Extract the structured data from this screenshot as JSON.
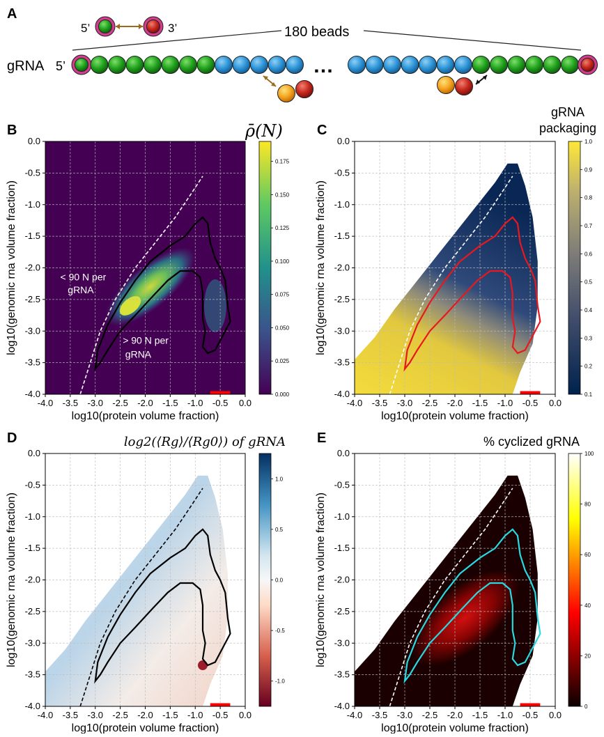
{
  "figure": {
    "panel_letters": [
      "A",
      "B",
      "C",
      "D",
      "E"
    ],
    "panel_a": {
      "bead_count_label": "180 beads",
      "strand_label": "gRNA",
      "five_prime": "5’",
      "three_prime": "3’",
      "ellipsis": "…",
      "colors": {
        "end_ring": "#d23c8c",
        "green": "#22a31f",
        "blue": "#2f96d8",
        "yellow": "#f5a623",
        "red": "#c8281e"
      }
    }
  },
  "chart_data": [
    {
      "panel": "B",
      "type": "heatmap",
      "title": "ρ̄(N)",
      "xlabel": "log10(protein volume fraction)",
      "ylabel": "log10(genomic rna volume fraction)",
      "xlim": [
        -4.0,
        0.0
      ],
      "ylim": [
        -4.0,
        0.0
      ],
      "x_ticks": [
        "-4.0",
        "-3.5",
        "-3.0",
        "-2.5",
        "-2.0",
        "-1.5",
        "-1.0",
        "-0.5",
        "0.0"
      ],
      "y_ticks": [
        "0.0",
        "-0.5",
        "-1.0",
        "-1.5",
        "-2.0",
        "-2.5",
        "-3.0",
        "-3.5",
        "-4.0"
      ],
      "colorbar": {
        "min": 0.0,
        "max": 0.19,
        "ticks": [
          "0.000",
          "0.025",
          "0.050",
          "0.075",
          "0.100",
          "0.125",
          "0.150",
          "0.175"
        ],
        "cmap": "viridis"
      },
      "annotations": [
        "< 90 N per",
        "gRNA",
        "> 90 N per",
        "gRNA"
      ],
      "contour_color": "#000000",
      "dashed_line_color": "#ffffff",
      "peak": {
        "x": -2.3,
        "y": -2.6,
        "value": 0.18
      },
      "grid": true
    },
    {
      "panel": "C",
      "type": "heatmap",
      "title": "gRNA packaging",
      "xlabel": "log10(protein volume fraction)",
      "ylabel": "log10(genomic rna volume fraction)",
      "xlim": [
        -4.0,
        0.0
      ],
      "ylim": [
        -4.0,
        0.0
      ],
      "x_ticks": [
        "-4.0",
        "-3.5",
        "-3.0",
        "-2.5",
        "-2.0",
        "-1.5",
        "-1.0",
        "-0.5",
        "0.0"
      ],
      "y_ticks": [
        "0.0",
        "-0.5",
        "-1.0",
        "-1.5",
        "-2.0",
        "-2.5",
        "-3.0",
        "-3.5",
        "-4.0"
      ],
      "colorbar": {
        "min": 0.1,
        "max": 1.0,
        "ticks": [
          "1.0",
          "0.9",
          "0.8",
          "0.7",
          "0.6",
          "0.5",
          "0.4",
          "0.3",
          "0.2",
          "0.1"
        ],
        "cmap": "cividis"
      },
      "contour_color": "#e8181e",
      "dashed_line_color": "#ffffff",
      "grid": true
    },
    {
      "panel": "D",
      "type": "heatmap",
      "title": "log2(⟨Rg⟩/⟨Rg0⟩) of gRNA",
      "xlabel": "log10(protein volume fraction)",
      "ylabel": "log10(genomic rna volume fraction)",
      "xlim": [
        -4.0,
        0.0
      ],
      "ylim": [
        -4.0,
        0.0
      ],
      "x_ticks": [
        "-4.0",
        "-3.5",
        "-3.0",
        "-2.5",
        "-2.0",
        "-1.5",
        "-1.0",
        "-0.5",
        "0.0"
      ],
      "y_ticks": [
        "0.0",
        "-0.5",
        "-1.0",
        "-1.5",
        "-2.0",
        "-2.5",
        "-3.0",
        "-3.5",
        "-4.0"
      ],
      "colorbar": {
        "min": -1.25,
        "max": 1.25,
        "ticks": [
          "1.0",
          "0.5",
          "0.0",
          "-0.5",
          "-1.0"
        ],
        "cmap": "RdBu"
      },
      "contour_color": "#000000",
      "dashed_line_color": "#000000",
      "grid": true
    },
    {
      "panel": "E",
      "type": "heatmap",
      "title": "% cyclized gRNA",
      "xlabel": "log10(protein volume fraction)",
      "ylabel": "log10(genomic rna volume fraction)",
      "xlim": [
        -4.0,
        0.0
      ],
      "ylim": [
        -4.0,
        0.0
      ],
      "x_ticks": [
        "-4.0",
        "-3.5",
        "-3.0",
        "-2.5",
        "-2.0",
        "-1.5",
        "-1.0",
        "-0.5",
        "0.0"
      ],
      "y_ticks": [
        "0.0",
        "-0.5",
        "-1.0",
        "-1.5",
        "-2.0",
        "-2.5",
        "-3.0",
        "-3.5",
        "-4.0"
      ],
      "colorbar": {
        "min": 0,
        "max": 100,
        "ticks": [
          "100",
          "80",
          "60",
          "40",
          "20",
          "0"
        ],
        "cmap": "hot"
      },
      "contour_color": "#29d9e0",
      "dashed_line_color": "#ffffff",
      "grid": true
    }
  ]
}
